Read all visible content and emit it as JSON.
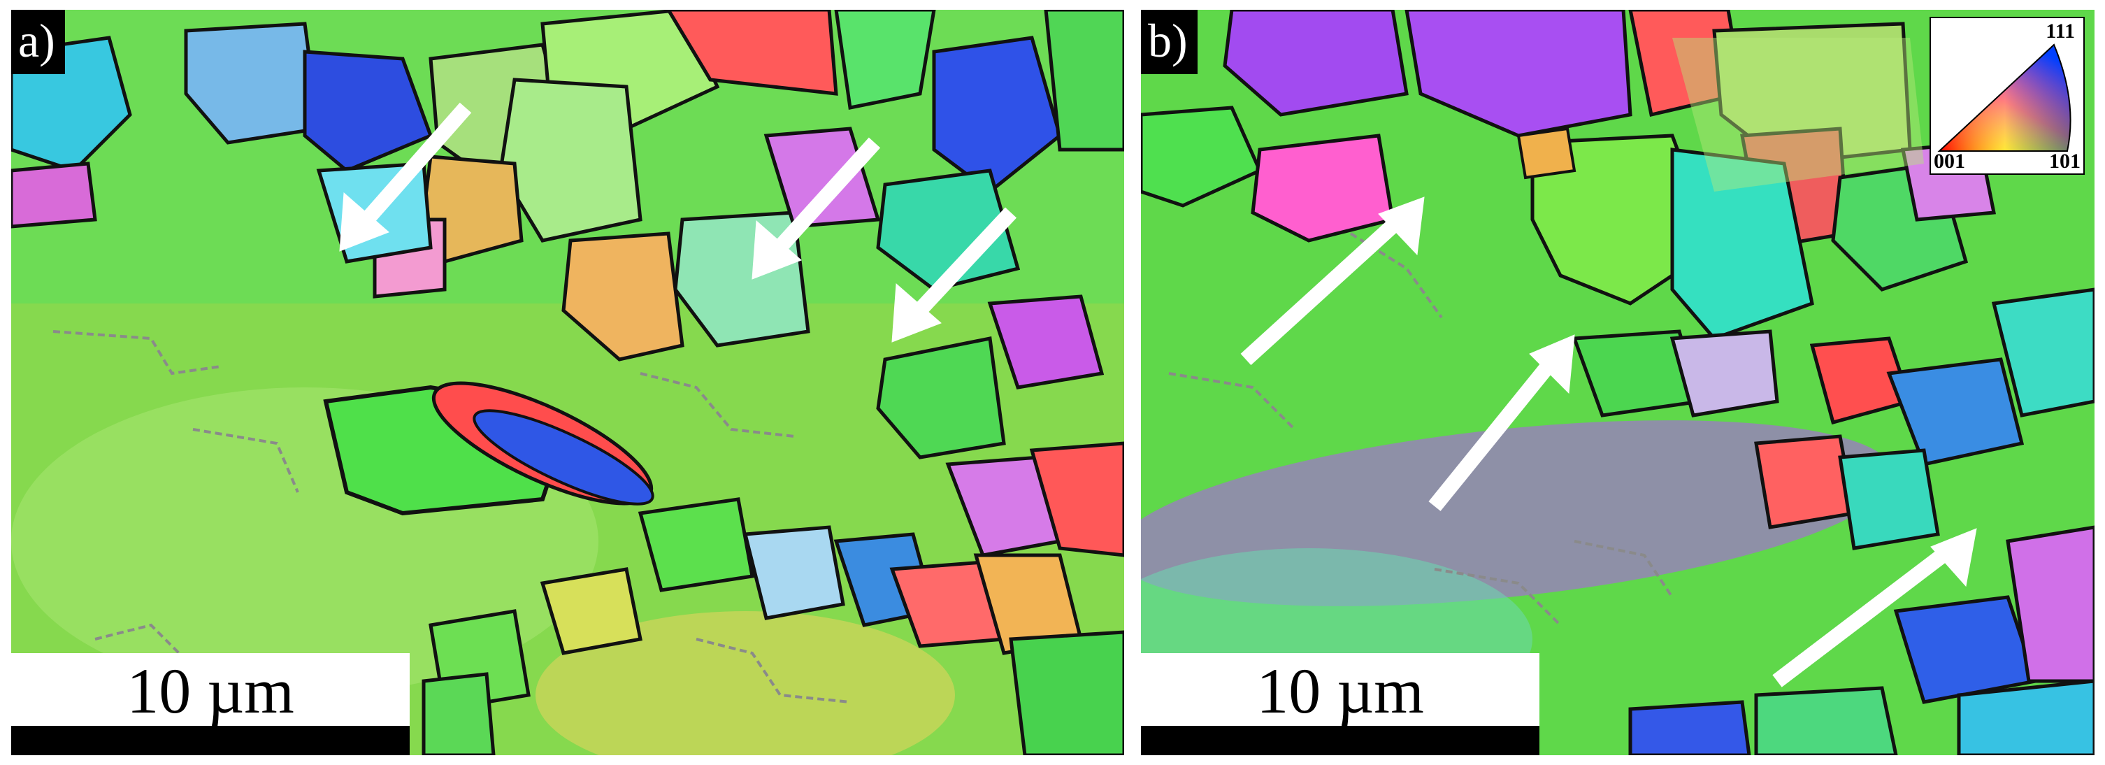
{
  "panels": [
    {
      "label": "a)",
      "scalebar": {
        "text": "10 µm"
      },
      "colors": {
        "base": "#5fd84a",
        "boundary": "#111111",
        "low_angle": "#8a8a8a",
        "arrow": "#ffffff"
      }
    },
    {
      "label": "b)",
      "scalebar": {
        "text": "10 µm"
      },
      "legend": {
        "top": "111",
        "left": "001",
        "right": "101"
      },
      "colors": {
        "base": "#5fd84a",
        "boundary": "#111111",
        "low_angle": "#8a8a8a",
        "arrow": "#ffffff"
      }
    }
  ]
}
